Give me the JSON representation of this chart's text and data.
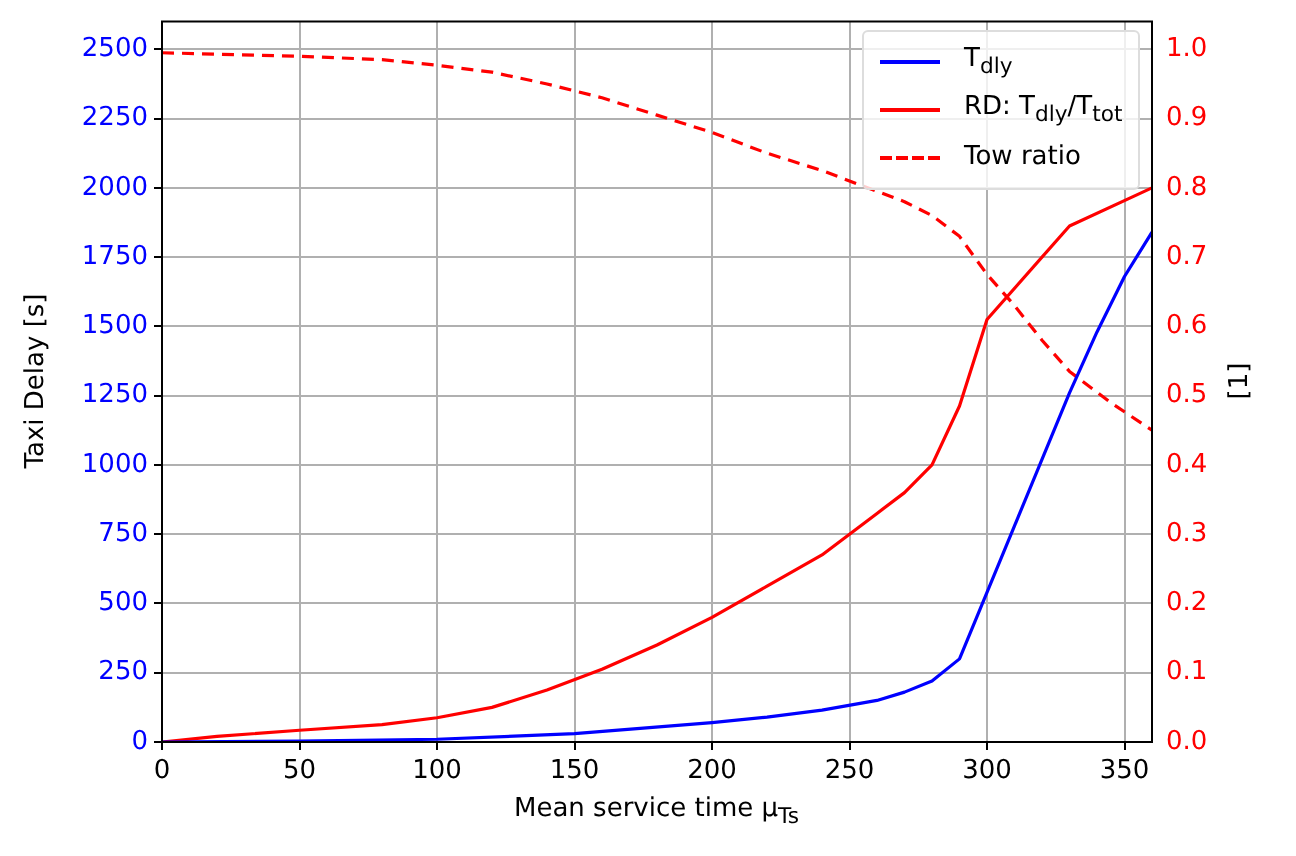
{
  "chart_data": {
    "type": "line",
    "xlabel": "Mean service time μ$_{Ts}$",
    "ylabel": "Taxi Delay [s]",
    "y2label": "[1]",
    "xlim": [
      0,
      360
    ],
    "xticks": [
      0,
      50,
      100,
      150,
      200,
      250,
      300,
      350
    ],
    "ylim": [
      0,
      2600
    ],
    "yticks": [
      0,
      250,
      500,
      750,
      1000,
      1250,
      1500,
      1750,
      2000,
      2250,
      2500
    ],
    "y2lim": [
      0,
      1.04
    ],
    "y2ticks": [
      {
        "value": 0,
        "label": "0.0"
      },
      0.1,
      0.2,
      0.3,
      0.4,
      0.5,
      0.6,
      0.7,
      0.8,
      0.9,
      {
        "value": 1,
        "label": "1.0"
      }
    ],
    "grid": true,
    "legend": "top right",
    "marker": "none",
    "series": [
      {
        "name": "T$_{dly}$",
        "color": "#0000ff",
        "axis": "y",
        "line_style": "solid",
        "x": [
          0,
          50,
          100,
          150,
          200,
          220,
          240,
          260,
          270,
          280,
          290,
          300,
          310,
          320,
          330,
          340,
          350,
          360
        ],
        "values": [
          0,
          3,
          10,
          30,
          70,
          90,
          115,
          150,
          180,
          220,
          300,
          540,
          780,
          1020,
          1260,
          1480,
          1680,
          1840
        ]
      },
      {
        "name": "RD: T$_{dly}$/T$_{tot}$",
        "color": "#ff0000",
        "axis": "y2",
        "line_style": "solid",
        "x": [
          0,
          20,
          50,
          80,
          100,
          120,
          140,
          160,
          180,
          200,
          220,
          240,
          260,
          270,
          280,
          290,
          300,
          330,
          360
        ],
        "values": [
          0,
          0.008,
          0.017,
          0.025,
          0.035,
          0.05,
          0.075,
          0.105,
          0.14,
          0.18,
          0.225,
          0.27,
          0.33,
          0.36,
          0.4,
          0.485,
          0.61,
          0.745,
          0.8
        ]
      },
      {
        "name": "Tow ratio",
        "color": "#ff0000",
        "axis": "y2",
        "line_style": "dashed",
        "x": [
          0,
          50,
          80,
          100,
          120,
          140,
          160,
          180,
          200,
          220,
          240,
          260,
          270,
          280,
          290,
          300,
          310,
          320,
          330,
          345,
          360
        ],
        "values": [
          0.995,
          0.99,
          0.985,
          0.977,
          0.967,
          0.95,
          0.93,
          0.905,
          0.88,
          0.85,
          0.825,
          0.795,
          0.78,
          0.76,
          0.73,
          0.675,
          0.63,
          0.58,
          0.535,
          0.49,
          0.45
        ]
      }
    ]
  }
}
